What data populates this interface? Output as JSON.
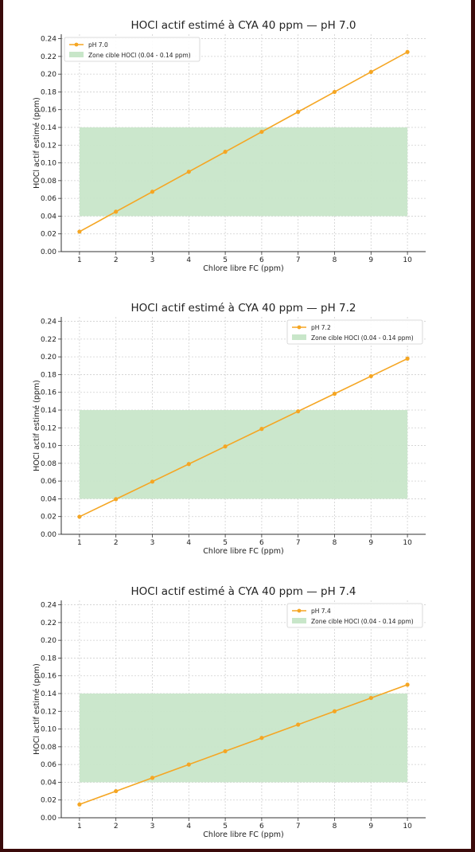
{
  "chart_data": [
    {
      "type": "line",
      "title": "HOCl actif estimé à CYA 40 ppm — pH 7.0",
      "xlabel": "Chlore libre FC (ppm)",
      "ylabel": "HOCl actif estimé (ppm)",
      "xlim": [
        0.5,
        10.5
      ],
      "ylim": [
        0,
        0.245
      ],
      "x_ticks": [
        1,
        2,
        3,
        4,
        5,
        6,
        7,
        8,
        9,
        10
      ],
      "y_ticks": [
        0.0,
        0.02,
        0.04,
        0.06,
        0.08,
        0.1,
        0.12,
        0.14,
        0.16,
        0.18,
        0.2,
        0.22,
        0.24
      ],
      "grid": true,
      "legend_position": "top-left",
      "x": [
        1,
        2,
        3,
        4,
        5,
        6,
        7,
        8,
        9,
        10
      ],
      "series": [
        {
          "name": "pH 7.0",
          "color": "#f5a623",
          "values": [
            0.0225,
            0.045,
            0.0675,
            0.09,
            0.1125,
            0.135,
            0.1575,
            0.18,
            0.2025,
            0.225
          ]
        }
      ],
      "band": {
        "label": "Zone cible HOCl (0.04 - 0.14 ppm)",
        "y0": 0.04,
        "y1": 0.14,
        "x0": 1,
        "x1": 10,
        "color": "#c8e6c9"
      }
    },
    {
      "type": "line",
      "title": "HOCl actif estimé à CYA 40 ppm — pH 7.2",
      "xlabel": "Chlore libre FC (ppm)",
      "ylabel": "HOCl actif estimé (ppm)",
      "xlim": [
        0.5,
        10.5
      ],
      "ylim": [
        0,
        0.245
      ],
      "x_ticks": [
        1,
        2,
        3,
        4,
        5,
        6,
        7,
        8,
        9,
        10
      ],
      "y_ticks": [
        0.0,
        0.02,
        0.04,
        0.06,
        0.08,
        0.1,
        0.12,
        0.14,
        0.16,
        0.18,
        0.2,
        0.22,
        0.24
      ],
      "grid": true,
      "legend_position": "top-right",
      "x": [
        1,
        2,
        3,
        4,
        5,
        6,
        7,
        8,
        9,
        10
      ],
      "series": [
        {
          "name": "pH 7.2",
          "color": "#f5a623",
          "values": [
            0.0198,
            0.0396,
            0.0594,
            0.0792,
            0.099,
            0.1188,
            0.1386,
            0.1584,
            0.1782,
            0.198
          ]
        }
      ],
      "band": {
        "label": "Zone cible HOCl (0.04 - 0.14 ppm)",
        "y0": 0.04,
        "y1": 0.14,
        "x0": 1,
        "x1": 10,
        "color": "#c8e6c9"
      }
    },
    {
      "type": "line",
      "title": "HOCl actif estimé à CYA 40 ppm — pH 7.4",
      "xlabel": "Chlore libre FC (ppm)",
      "ylabel": "HOCl actif estimé (ppm)",
      "xlim": [
        0.5,
        10.5
      ],
      "ylim": [
        0,
        0.245
      ],
      "x_ticks": [
        1,
        2,
        3,
        4,
        5,
        6,
        7,
        8,
        9,
        10
      ],
      "y_ticks": [
        0.0,
        0.02,
        0.04,
        0.06,
        0.08,
        0.1,
        0.12,
        0.14,
        0.16,
        0.18,
        0.2,
        0.22,
        0.24
      ],
      "grid": true,
      "legend_position": "top-right",
      "x": [
        1,
        2,
        3,
        4,
        5,
        6,
        7,
        8,
        9,
        10
      ],
      "series": [
        {
          "name": "pH 7.4",
          "color": "#f5a623",
          "values": [
            0.015,
            0.03,
            0.045,
            0.06,
            0.075,
            0.09,
            0.105,
            0.12,
            0.135,
            0.15
          ]
        }
      ],
      "band": {
        "label": "Zone cible HOCl (0.04 - 0.14 ppm)",
        "y0": 0.04,
        "y1": 0.14,
        "x0": 1,
        "x1": 10,
        "color": "#c8e6c9"
      }
    }
  ]
}
